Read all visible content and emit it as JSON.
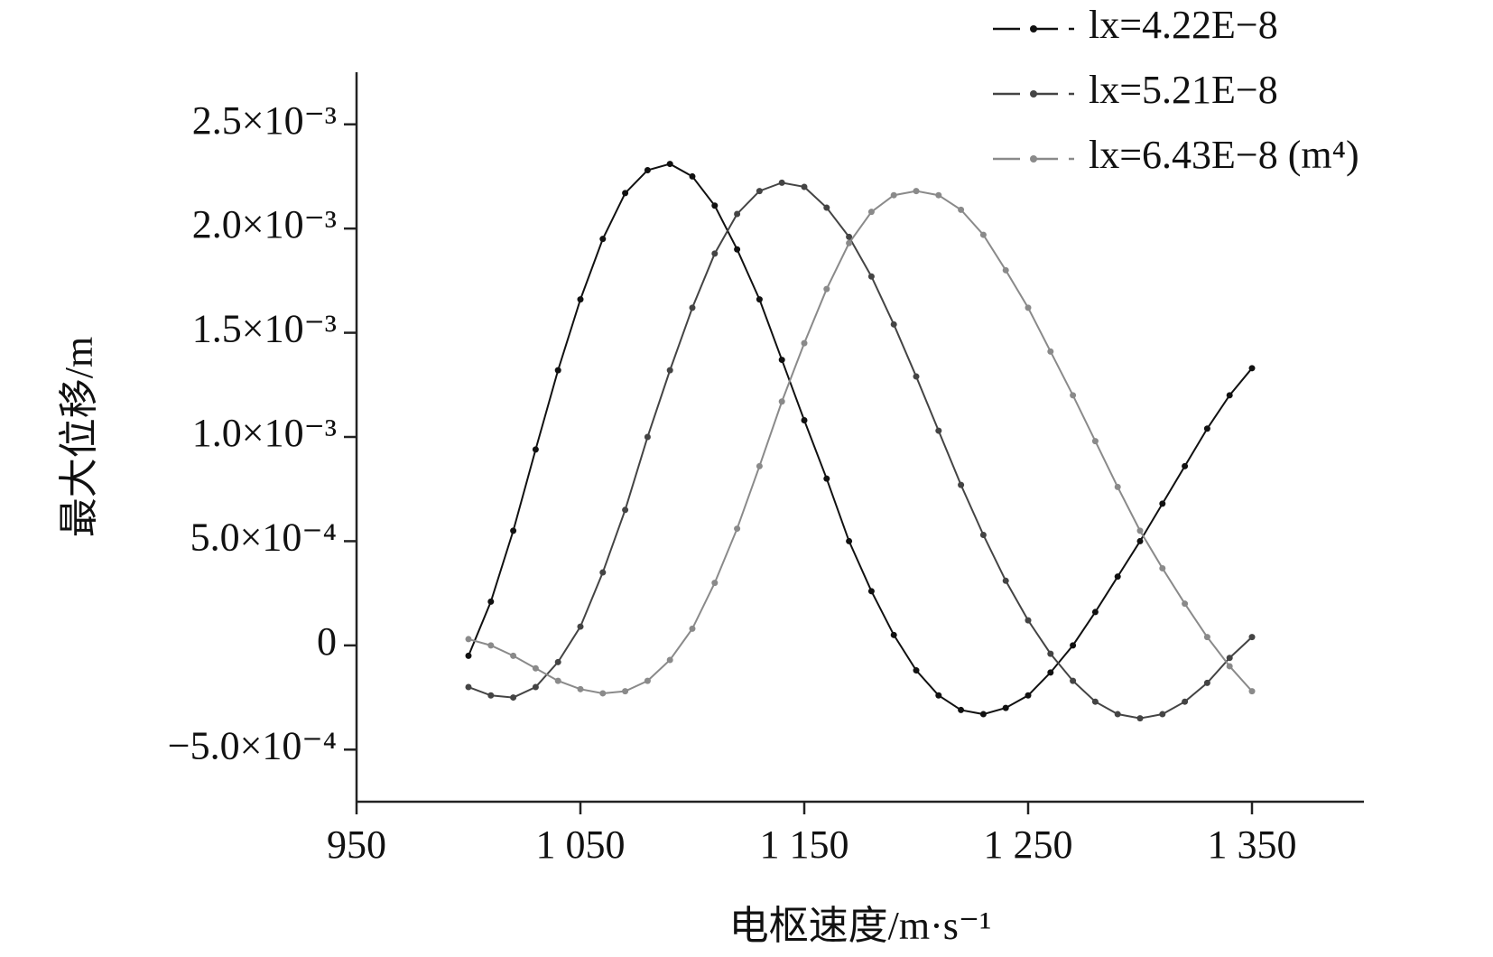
{
  "chart_data": {
    "type": "line",
    "x_label": "电枢速度/m·s⁻¹",
    "y_label": "最大位移/m",
    "x": [
      1000,
      1010,
      1020,
      1030,
      1040,
      1050,
      1060,
      1070,
      1080,
      1090,
      1100,
      1110,
      1120,
      1130,
      1140,
      1150,
      1160,
      1170,
      1180,
      1190,
      1200,
      1210,
      1220,
      1230,
      1240,
      1250,
      1260,
      1270,
      1280,
      1290,
      1300,
      1310,
      1320,
      1330,
      1340,
      1350
    ],
    "series": [
      {
        "name": "lx=4.22E−8",
        "color": "#111111",
        "values": [
          -5e-05,
          0.00021,
          0.00055,
          0.00094,
          0.00132,
          0.00166,
          0.00195,
          0.00217,
          0.00228,
          0.00231,
          0.00225,
          0.00211,
          0.0019,
          0.00166,
          0.00137,
          0.00108,
          0.0008,
          0.0005,
          0.00026,
          5e-05,
          -0.00012,
          -0.00024,
          -0.00031,
          -0.00033,
          -0.0003,
          -0.00024,
          -0.00013,
          0.0,
          0.00016,
          0.00033,
          0.0005,
          0.00068,
          0.00086,
          0.00104,
          0.0012,
          0.00133
        ]
      },
      {
        "name": "lx=5.21E−8",
        "color": "#444444",
        "values": [
          -0.0002,
          -0.00024,
          -0.00025,
          -0.0002,
          -8e-05,
          9e-05,
          0.00035,
          0.00065,
          0.001,
          0.00132,
          0.00162,
          0.00188,
          0.00207,
          0.00218,
          0.00222,
          0.0022,
          0.0021,
          0.00196,
          0.00177,
          0.00154,
          0.00129,
          0.00103,
          0.00077,
          0.00053,
          0.00031,
          0.00012,
          -4e-05,
          -0.00017,
          -0.00027,
          -0.00033,
          -0.00035,
          -0.00033,
          -0.00027,
          -0.00018,
          -6e-05,
          4e-05
        ]
      },
      {
        "name": "lx=6.43E−8 (m⁴)",
        "color": "#8a8a8a",
        "values": [
          3e-05,
          0.0,
          -5e-05,
          -0.00011,
          -0.00017,
          -0.00021,
          -0.00023,
          -0.00022,
          -0.00017,
          -7e-05,
          8e-05,
          0.0003,
          0.00056,
          0.00086,
          0.00117,
          0.00145,
          0.00171,
          0.00193,
          0.00208,
          0.00216,
          0.00218,
          0.00216,
          0.00209,
          0.00197,
          0.0018,
          0.00162,
          0.00141,
          0.0012,
          0.00098,
          0.00076,
          0.00055,
          0.00037,
          0.0002,
          4e-05,
          -0.0001,
          -0.00022
        ]
      }
    ],
    "xlim": [
      950,
      1400
    ],
    "xticks": [
      950,
      {
        "value": 1050,
        "label": "1 050"
      },
      {
        "value": 1150,
        "label": "1 150"
      },
      {
        "value": 1250,
        "label": "1 250"
      },
      {
        "value": 1350,
        "label": "1 350"
      }
    ],
    "ylim": [
      -0.00075,
      0.00275
    ],
    "yticks": [
      {
        "value": -0.0005,
        "label": "−5.0×10⁻⁴"
      },
      0,
      {
        "value": 0.0005,
        "label": "5.0×10⁻⁴"
      },
      {
        "value": 0.001,
        "label": "1.0×10⁻³"
      },
      {
        "value": 0.0015,
        "label": "1.5×10⁻³"
      },
      {
        "value": 0.002,
        "label": "2.0×10⁻³"
      },
      {
        "value": 0.0025,
        "label": "2.5×10⁻³"
      }
    ],
    "grid": false,
    "legend": "top-right"
  }
}
